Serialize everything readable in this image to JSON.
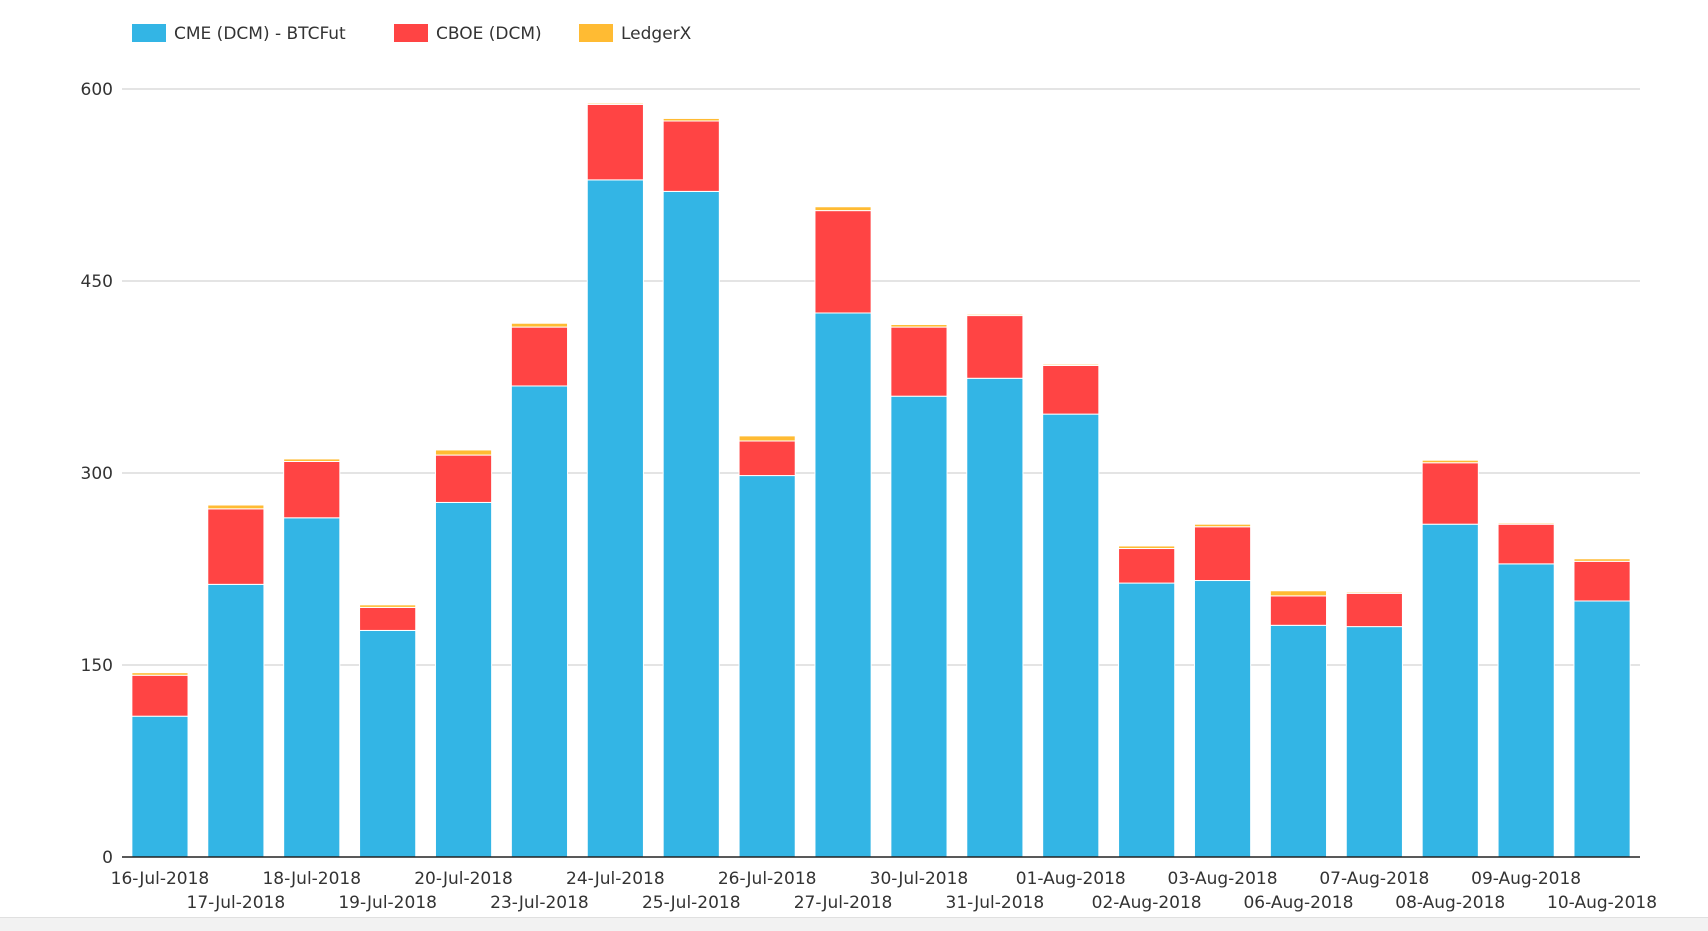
{
  "chart_data": {
    "type": "bar",
    "stacked": true,
    "title": "",
    "xlabel": "",
    "ylabel": "",
    "ylim": [
      0,
      600
    ],
    "yticks": [
      0,
      150,
      300,
      450,
      600
    ],
    "grid": true,
    "legend_position": "top-left",
    "categories": [
      "16-Jul-2018",
      "17-Jul-2018",
      "18-Jul-2018",
      "19-Jul-2018",
      "20-Jul-2018",
      "23-Jul-2018",
      "24-Jul-2018",
      "25-Jul-2018",
      "26-Jul-2018",
      "27-Jul-2018",
      "30-Jul-2018",
      "31-Jul-2018",
      "01-Aug-2018",
      "02-Aug-2018",
      "03-Aug-2018",
      "06-Aug-2018",
      "07-Aug-2018",
      "08-Aug-2018",
      "09-Aug-2018",
      "10-Aug-2018"
    ],
    "series": [
      {
        "name": "CME (DCM) - BTCFut",
        "color": "#33b5e5",
        "values": [
          110,
          213,
          265,
          177,
          277,
          368,
          529,
          520,
          298,
          425,
          360,
          374,
          346,
          214,
          216,
          181,
          180,
          260,
          229,
          200
        ]
      },
      {
        "name": "CBOE (DCM)",
        "color": "#ff4444",
        "values": [
          32,
          59,
          44,
          18,
          37,
          46,
          59,
          55,
          27,
          80,
          54,
          49,
          38,
          27,
          42,
          23,
          26,
          48,
          31,
          31
        ]
      },
      {
        "name": "LedgerX",
        "color": "#ffbb33",
        "values": [
          2,
          3,
          2,
          2,
          4,
          3,
          1,
          2,
          4,
          3,
          2,
          1,
          1,
          2,
          2,
          4,
          1,
          2,
          1,
          2
        ]
      }
    ]
  }
}
